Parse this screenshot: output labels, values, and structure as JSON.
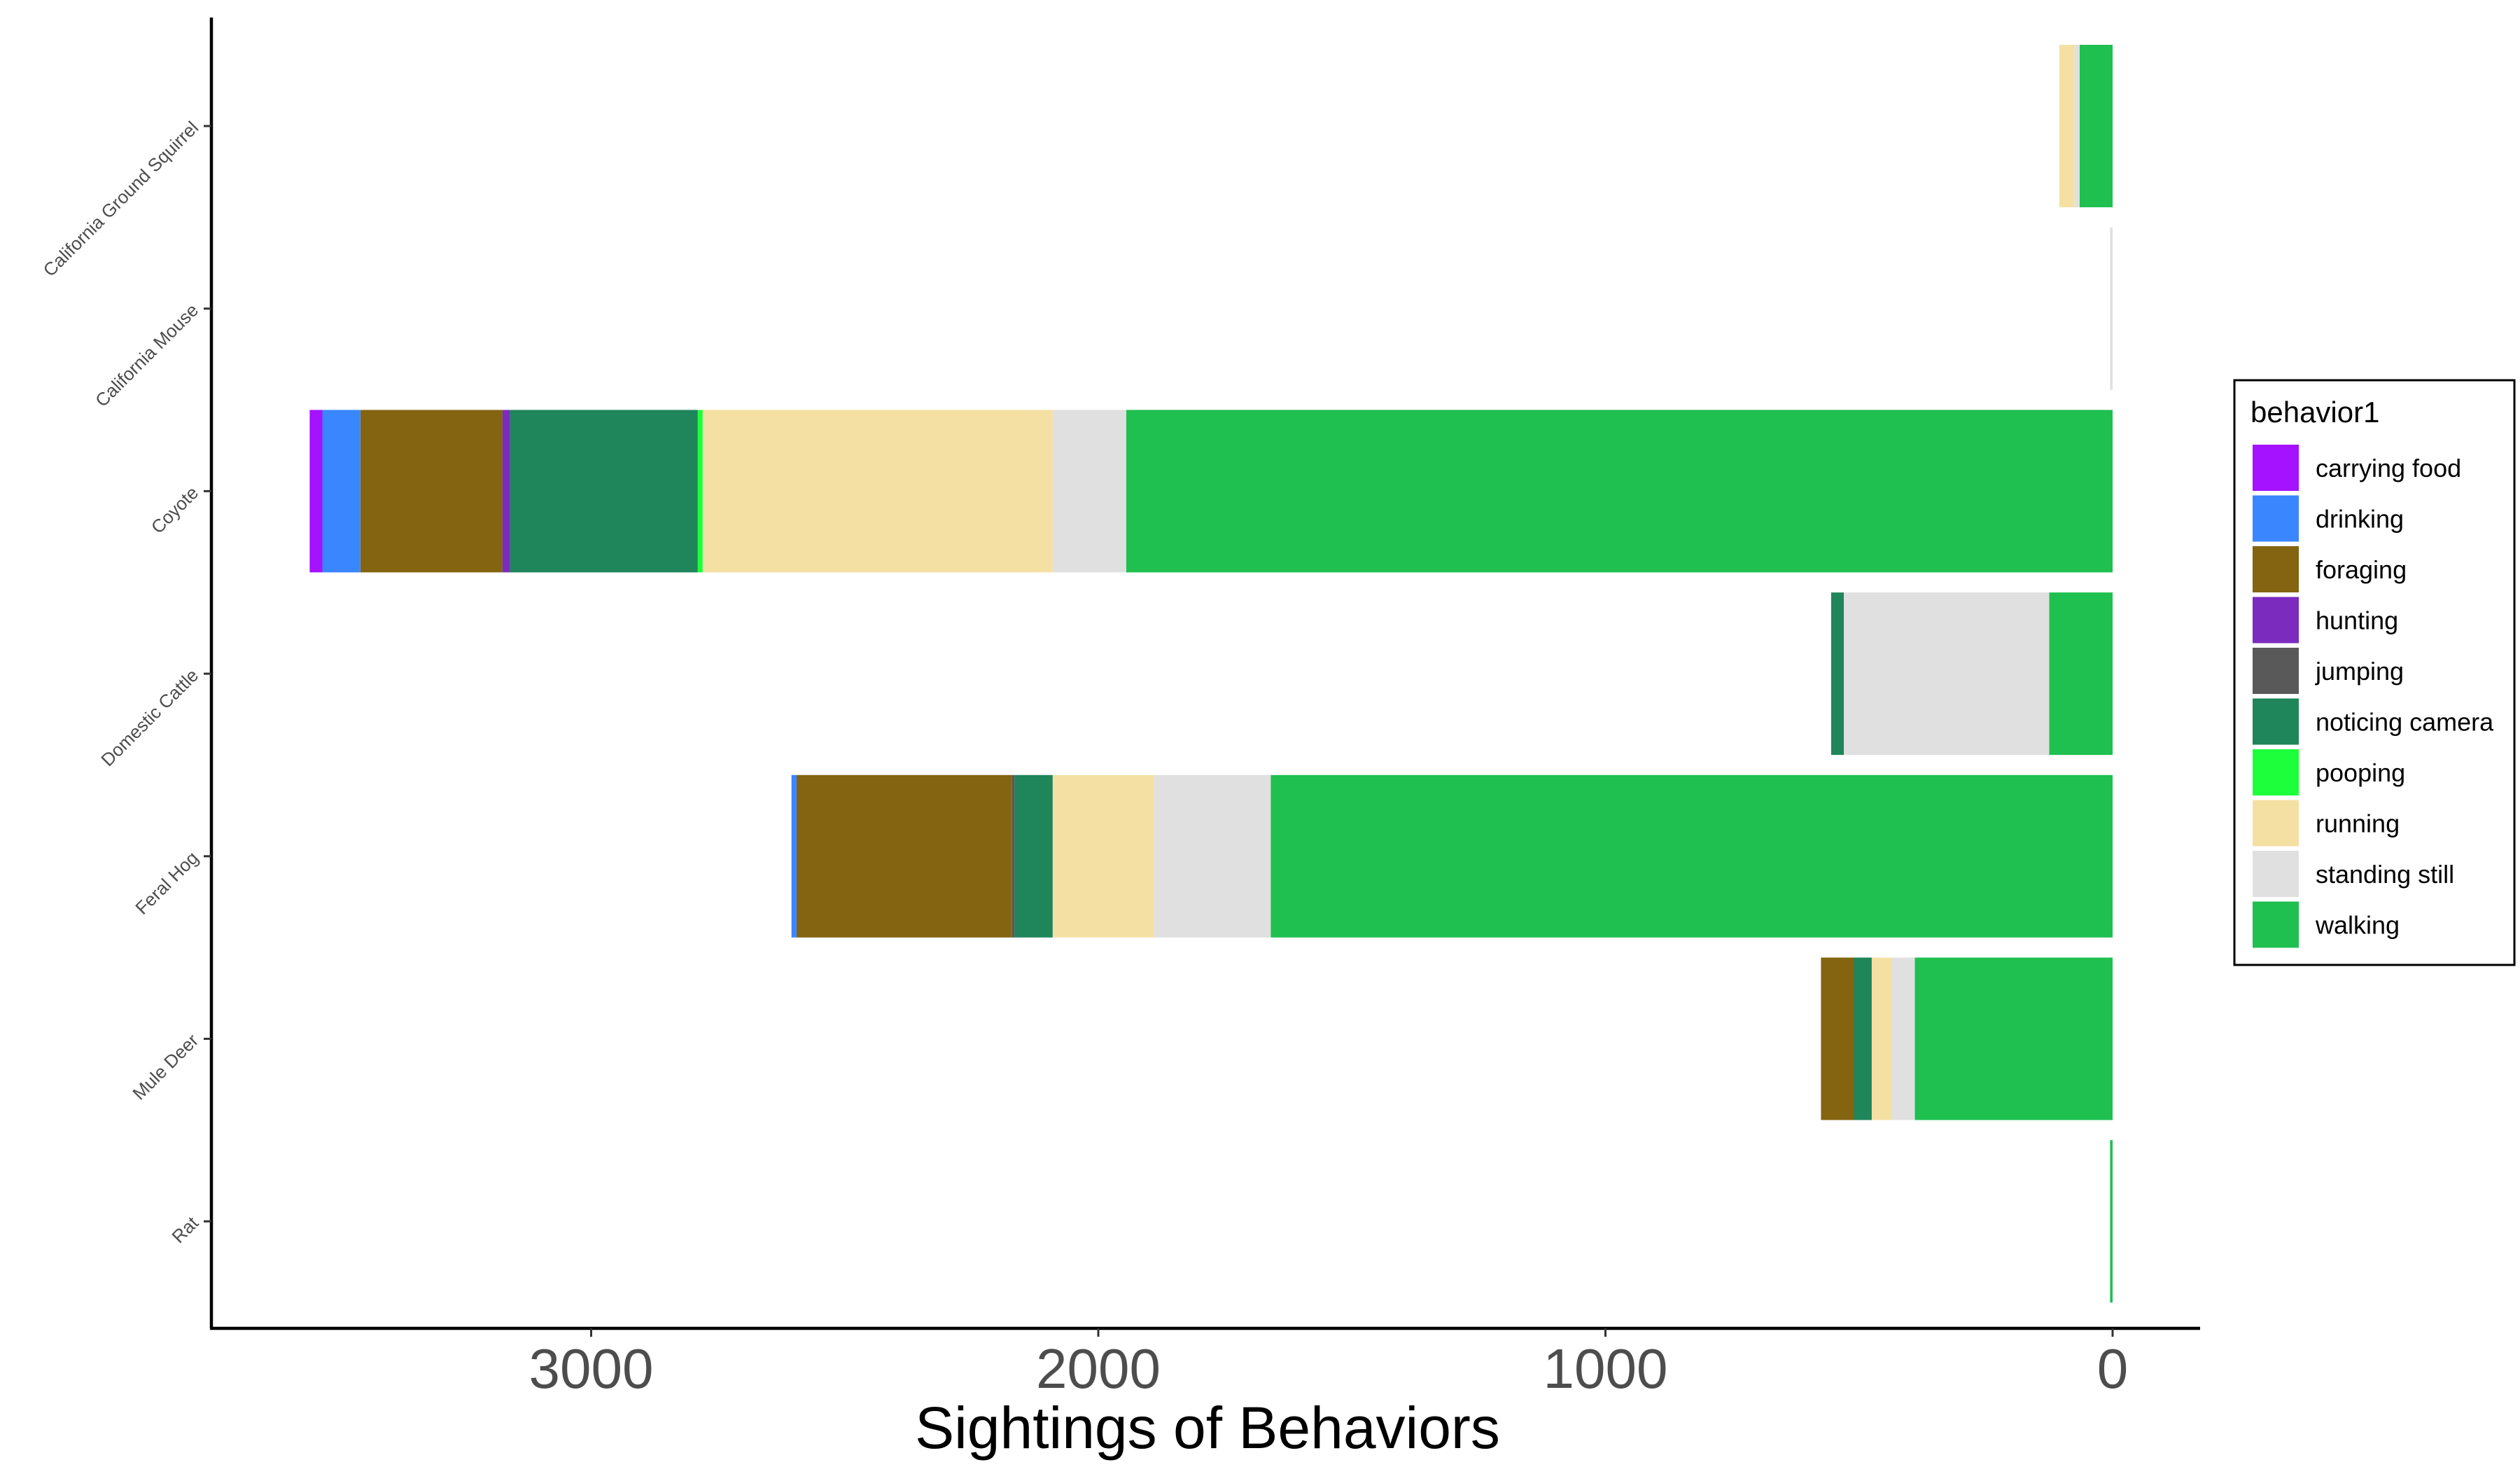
{
  "chart_data": {
    "type": "bar",
    "orientation": "horizontal",
    "stacked": true,
    "x_reversed": true,
    "xlabel": "Sightings of Behaviors",
    "ylabel": "",
    "xlim": [
      -175,
      3740
    ],
    "xticks": [
      3000,
      2000,
      1000,
      0
    ],
    "grid": false,
    "legend_position": "right",
    "legend_title": "behavior1",
    "categories": [
      "California Ground Squirrel",
      "California Mouse",
      "Coyote",
      "Domestic Cattle",
      "Feral Hog",
      "Mule Deer",
      "Rat"
    ],
    "series": [
      {
        "name": "walking",
        "color": "#1FBF50",
        "values": [
          65,
          0,
          1945,
          125,
          1660,
          390,
          5
        ]
      },
      {
        "name": "standing still",
        "color": "#E0E0E0",
        "values": [
          10,
          5,
          145,
          405,
          230,
          45,
          0
        ]
      },
      {
        "name": "running",
        "color": "#F5E0A3",
        "values": [
          30,
          0,
          690,
          0,
          200,
          40,
          0
        ]
      },
      {
        "name": "pooping",
        "color": "#1EFF3C",
        "values": [
          0,
          0,
          10,
          0,
          0,
          0,
          0
        ]
      },
      {
        "name": "noticing camera",
        "color": "#1F855B",
        "values": [
          0,
          0,
          370,
          25,
          75,
          35,
          0
        ]
      },
      {
        "name": "jumping",
        "color": "#595959",
        "values": [
          0,
          0,
          0,
          0,
          5,
          0,
          0
        ]
      },
      {
        "name": "hunting",
        "color": "#7B2CBF",
        "values": [
          0,
          0,
          15,
          0,
          0,
          0,
          0
        ]
      },
      {
        "name": "foraging",
        "color": "#846410",
        "values": [
          0,
          0,
          280,
          0,
          425,
          65,
          0
        ]
      },
      {
        "name": "drinking",
        "color": "#3A86FF",
        "values": [
          0,
          0,
          75,
          0,
          10,
          0,
          0
        ]
      },
      {
        "name": "carrying food",
        "color": "#A512FF",
        "values": [
          0,
          0,
          25,
          0,
          0,
          0,
          0
        ]
      }
    ],
    "legend_order": [
      "carrying food",
      "drinking",
      "foraging",
      "hunting",
      "jumping",
      "noticing camera",
      "pooping",
      "running",
      "standing still",
      "walking"
    ]
  }
}
